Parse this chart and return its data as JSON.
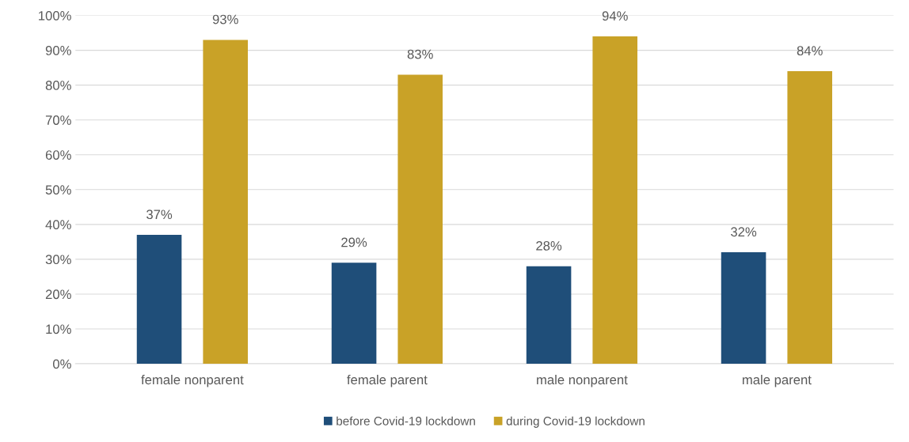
{
  "chart_data": {
    "type": "bar",
    "categories": [
      "female nonparent",
      "female parent",
      "male nonparent",
      "male parent"
    ],
    "series": [
      {
        "name": "before Covid-19 lockdown",
        "color": "#1f4e79",
        "values": [
          37,
          29,
          28,
          32
        ],
        "value_labels": [
          "37%",
          "29%",
          "28%",
          "32%"
        ]
      },
      {
        "name": "during Covid-19 lockdown",
        "color": "#c9a227",
        "values": [
          93,
          83,
          94,
          84
        ],
        "value_labels": [
          "93%",
          "83%",
          "94%",
          "84%"
        ]
      }
    ],
    "ylim": [
      0,
      100
    ],
    "yticks": [
      {
        "value": 0,
        "label": "0%"
      },
      {
        "value": 10,
        "label": "10%"
      },
      {
        "value": 20,
        "label": "20%"
      },
      {
        "value": 30,
        "label": "30%"
      },
      {
        "value": 40,
        "label": "40%"
      },
      {
        "value": 50,
        "label": "50%"
      },
      {
        "value": 60,
        "label": "60%"
      },
      {
        "value": 70,
        "label": "70%"
      },
      {
        "value": 80,
        "label": "80%"
      },
      {
        "value": 90,
        "label": "90%"
      },
      {
        "value": 100,
        "label": "100%"
      }
    ],
    "grid": "y",
    "legend": "bottom"
  }
}
